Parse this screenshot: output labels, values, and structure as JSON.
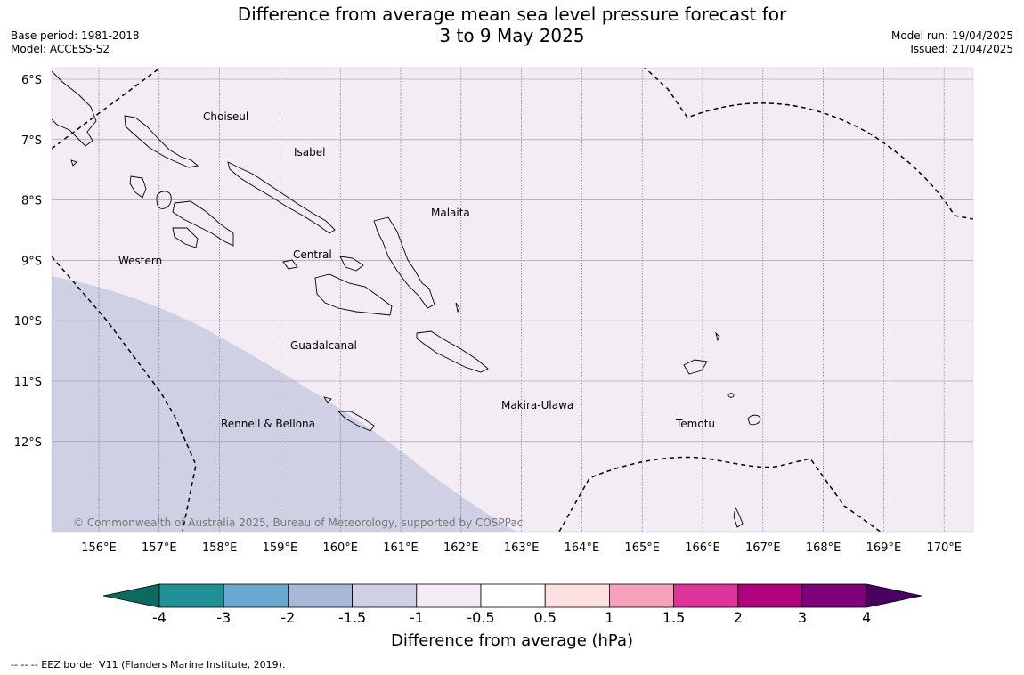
{
  "header": {
    "title_line1": "Difference from average mean sea level pressure forecast for",
    "title_line2": "3 to 9 May 2025",
    "base_period": "Base period: 1981-2018",
    "model": "Model: ACCESS-S2",
    "model_run": "Model run: 19/04/2025",
    "issued": "Issued: 21/04/2025"
  },
  "map": {
    "background_color": "#f3ecf5",
    "low_region_color": "#cfd0e3",
    "lat_labels": [
      "6°S",
      "7°S",
      "8°S",
      "9°S",
      "10°S",
      "11°S",
      "12°S"
    ],
    "lon_labels": [
      "156°E",
      "157°E",
      "158°E",
      "159°E",
      "160°E",
      "161°E",
      "162°E",
      "163°E",
      "164°E",
      "165°E",
      "166°E",
      "167°E",
      "168°E",
      "169°E",
      "170°E"
    ],
    "places": [
      {
        "name": "Choiseul"
      },
      {
        "name": "Isabel"
      },
      {
        "name": "Malaita"
      },
      {
        "name": "Western"
      },
      {
        "name": "Central"
      },
      {
        "name": "Guadalcanal"
      },
      {
        "name": "Makira-Ulawa"
      },
      {
        "name": "Rennell & Bellona"
      },
      {
        "name": "Temotu"
      }
    ],
    "copyright": "© Commonwealth of Australia 2025, Bureau of Meteorology, supported by COSPPac"
  },
  "colorbar": {
    "title": "Difference from average (hPa)",
    "tick_labels": [
      "-4",
      "-3",
      "-2",
      "-1.5",
      "-1",
      "-0.5",
      "0.5",
      "1",
      "1.5",
      "2",
      "3",
      "4"
    ],
    "colors": [
      "#0b6b5e",
      "#1f9196",
      "#67a9d0",
      "#a9b8d4",
      "#cfd0e3",
      "#f3ecf5",
      "#ffffff",
      "#fde0e0",
      "#f7a1bd",
      "#dc3498",
      "#b0007e",
      "#7e007b",
      "#4a0060"
    ]
  },
  "footnote": "--  --  -- EEZ border V11 (Flanders Marine Institute, 2019)."
}
